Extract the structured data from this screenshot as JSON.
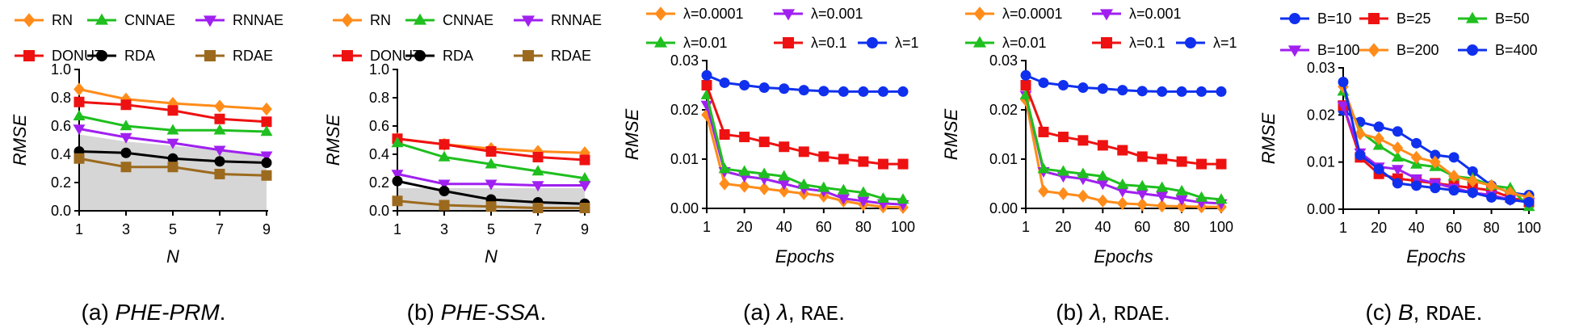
{
  "colors": {
    "RN": "#ff8c1a",
    "CNNAE": "#1fbf1f",
    "RNNAE": "#a020f0",
    "DONUT": "#ee1111",
    "RDA": "#000000",
    "RDAE": "#9c6a1e",
    "l0001": "#ff8c1a",
    "l001": "#a020f0",
    "l01": "#1fbf1f",
    "l1": "#ee1111",
    "lam1": "#1030ee",
    "B10": "#1030ee",
    "B25": "#ee1111",
    "B50": "#1fbf1f",
    "B100": "#a020f0",
    "B200": "#ff8c1a",
    "B400": "#1030ee",
    "shade": "#d6d6d6"
  },
  "captions": [
    {
      "label": "(a)",
      "italic": "PHE-PRM",
      "rest": "."
    },
    {
      "label": "(b)",
      "italic": "PHE-SSA",
      "rest": "."
    },
    {
      "label": "(a)",
      "italic": "λ",
      "rest": ", ",
      "mono": "RAE",
      "end": "."
    },
    {
      "label": "(b)",
      "italic": "λ",
      "rest": ", ",
      "mono": "RDAE",
      "end": "."
    },
    {
      "label": "(c)",
      "italic": "B",
      "rest": ", ",
      "mono": "RDAE",
      "end": "."
    }
  ],
  "chart_data": [
    {
      "type": "line",
      "xlabel": "N",
      "ylabel": "RMSE",
      "x": [
        1,
        3,
        5,
        7,
        9
      ],
      "xticks": [
        "1",
        "3",
        "5",
        "7",
        "9"
      ],
      "ylim": [
        0,
        1.0
      ],
      "yticks": [
        "0.0",
        "0.2",
        "0.4",
        "0.6",
        "0.8",
        "1.0"
      ],
      "legend_rows": [
        [
          "RN",
          "CNNAE",
          "RNNAE"
        ],
        [
          "DONUT",
          "RDA",
          "RDAE"
        ]
      ],
      "shaded_region": {
        "x": [
          1,
          3,
          5,
          7,
          9
        ],
        "upper": [
          0.54,
          0.49,
          0.46,
          0.43,
          0.4
        ]
      },
      "series": [
        {
          "name": "RN",
          "values": [
            0.86,
            0.79,
            0.76,
            0.74,
            0.72
          ]
        },
        {
          "name": "DONUT",
          "values": [
            0.77,
            0.75,
            0.71,
            0.65,
            0.63
          ]
        },
        {
          "name": "CNNAE",
          "values": [
            0.67,
            0.6,
            0.57,
            0.57,
            0.56
          ]
        },
        {
          "name": "RNNAE",
          "values": [
            0.58,
            0.52,
            0.48,
            0.43,
            0.39
          ]
        },
        {
          "name": "RDA",
          "values": [
            0.42,
            0.41,
            0.37,
            0.35,
            0.34
          ]
        },
        {
          "name": "RDAE",
          "values": [
            0.37,
            0.31,
            0.31,
            0.26,
            0.25
          ]
        }
      ]
    },
    {
      "type": "line",
      "xlabel": "N",
      "ylabel": "RMSE",
      "x": [
        1,
        3,
        5,
        7,
        9
      ],
      "xticks": [
        "1",
        "3",
        "5",
        "7",
        "9"
      ],
      "ylim": [
        0,
        1.0
      ],
      "yticks": [
        "0.0",
        "0.2",
        "0.4",
        "0.6",
        "0.8",
        "1.0"
      ],
      "legend_rows": [
        [
          "RN",
          "CNNAE",
          "RNNAE"
        ],
        [
          "DONUT",
          "RDA",
          "RDAE"
        ]
      ],
      "shaded_region": {
        "x": [
          1,
          3,
          5,
          7,
          9
        ],
        "upper": [
          0.16,
          0.16,
          0.16,
          0.16,
          0.16
        ]
      },
      "series": [
        {
          "name": "RN",
          "values": [
            0.51,
            0.47,
            0.44,
            0.42,
            0.41
          ]
        },
        {
          "name": "DONUT",
          "values": [
            0.51,
            0.47,
            0.42,
            0.38,
            0.36
          ]
        },
        {
          "name": "CNNAE",
          "values": [
            0.48,
            0.38,
            0.33,
            0.28,
            0.23
          ]
        },
        {
          "name": "RNNAE",
          "values": [
            0.26,
            0.19,
            0.19,
            0.18,
            0.18
          ]
        },
        {
          "name": "RDA",
          "values": [
            0.21,
            0.14,
            0.08,
            0.06,
            0.05
          ]
        },
        {
          "name": "RDAE",
          "values": [
            0.07,
            0.04,
            0.03,
            0.02,
            0.02
          ]
        }
      ]
    },
    {
      "type": "line",
      "xlabel": "Epochs",
      "ylabel": "RMSE",
      "x": [
        1,
        10,
        20,
        30,
        40,
        50,
        60,
        70,
        80,
        90,
        100
      ],
      "xticks": [
        "1",
        "20",
        "40",
        "60",
        "80",
        "100"
      ],
      "xtick_values": [
        1,
        20,
        40,
        60,
        80,
        100
      ],
      "ylim": [
        0,
        0.03
      ],
      "yticks": [
        "0.00",
        "0.01",
        "0.02",
        "0.03"
      ],
      "legend_rows": [
        [
          "λ=0.0001",
          "λ=0.001"
        ],
        [
          "λ=0.01",
          "λ=0.1",
          "λ=1"
        ]
      ],
      "series": [
        {
          "name": "λ=0.0001",
          "key": "l0001",
          "values": [
            0.019,
            0.005,
            0.0045,
            0.004,
            0.0035,
            0.003,
            0.0025,
            0.0015,
            0.0008,
            0.0003,
            0.0002
          ]
        },
        {
          "name": "λ=0.001",
          "key": "l001",
          "values": [
            0.021,
            0.0075,
            0.0065,
            0.006,
            0.005,
            0.004,
            0.0035,
            0.002,
            0.0015,
            0.001,
            0.0008
          ]
        },
        {
          "name": "λ=0.01",
          "key": "l01",
          "values": [
            0.023,
            0.008,
            0.0075,
            0.007,
            0.0065,
            0.0048,
            0.0042,
            0.0037,
            0.0032,
            0.002,
            0.0018
          ]
        },
        {
          "name": "λ=0.1",
          "key": "l1",
          "values": [
            0.025,
            0.015,
            0.0145,
            0.0135,
            0.0125,
            0.0115,
            0.0105,
            0.01,
            0.0095,
            0.009,
            0.009
          ]
        },
        {
          "name": "λ=1",
          "key": "lam1",
          "values": [
            0.027,
            0.0255,
            0.025,
            0.0245,
            0.0243,
            0.024,
            0.0238,
            0.0237,
            0.0237,
            0.0237,
            0.0237
          ]
        }
      ]
    },
    {
      "type": "line",
      "xlabel": "Epochs",
      "ylabel": "RMSE",
      "x": [
        1,
        10,
        20,
        30,
        40,
        50,
        60,
        70,
        80,
        90,
        100
      ],
      "xticks": [
        "1",
        "20",
        "40",
        "60",
        "80",
        "100"
      ],
      "xtick_values": [
        1,
        20,
        40,
        60,
        80,
        100
      ],
      "ylim": [
        0,
        0.03
      ],
      "yticks": [
        "0.00",
        "0.01",
        "0.02",
        "0.03"
      ],
      "legend_rows": [
        [
          "λ=0.0001",
          "λ=0.001"
        ],
        [
          "λ=0.01",
          "λ=0.1",
          "λ=1"
        ]
      ],
      "series": [
        {
          "name": "λ=0.0001",
          "key": "l0001",
          "values": [
            0.022,
            0.0035,
            0.003,
            0.0025,
            0.0015,
            0.001,
            0.0008,
            0.0005,
            0.0004,
            0.0003,
            0.0003
          ]
        },
        {
          "name": "λ=0.001",
          "key": "l001",
          "values": [
            0.023,
            0.0075,
            0.0065,
            0.006,
            0.005,
            0.0035,
            0.003,
            0.0025,
            0.0018,
            0.0012,
            0.001
          ]
        },
        {
          "name": "λ=0.01",
          "key": "l01",
          "values": [
            0.023,
            0.008,
            0.0075,
            0.007,
            0.0065,
            0.0048,
            0.0045,
            0.0042,
            0.0035,
            0.0022,
            0.0018
          ]
        },
        {
          "name": "λ=0.1",
          "key": "l1",
          "values": [
            0.025,
            0.0155,
            0.0145,
            0.0138,
            0.0128,
            0.0118,
            0.0105,
            0.01,
            0.0095,
            0.009,
            0.009
          ]
        },
        {
          "name": "λ=1",
          "key": "lam1",
          "values": [
            0.027,
            0.0255,
            0.025,
            0.0245,
            0.0243,
            0.024,
            0.0238,
            0.0237,
            0.0237,
            0.0237,
            0.0237
          ]
        }
      ]
    },
    {
      "type": "line",
      "xlabel": "Epochs",
      "ylabel": "RMSE",
      "x": [
        1,
        10,
        20,
        30,
        40,
        50,
        60,
        70,
        80,
        90,
        100
      ],
      "xticks": [
        "1",
        "20",
        "40",
        "60",
        "80",
        "100"
      ],
      "xtick_values": [
        1,
        20,
        40,
        60,
        80,
        100
      ],
      "ylim": [
        0,
        0.03
      ],
      "yticks": [
        "0.00",
        "0.01",
        "0.02",
        "0.03"
      ],
      "legend_rows": [
        [
          "B=10",
          "B=25",
          "B=50"
        ],
        [
          "B=100",
          "B=200",
          "B=400"
        ]
      ],
      "series": [
        {
          "name": "B=10",
          "key": "B10",
          "values": [
            0.021,
            0.0185,
            0.0175,
            0.0165,
            0.014,
            0.0115,
            0.011,
            0.008,
            0.005,
            0.0035,
            0.003
          ]
        },
        {
          "name": "B=25",
          "key": "B25",
          "values": [
            0.022,
            0.011,
            0.0075,
            0.0065,
            0.006,
            0.0055,
            0.005,
            0.0045,
            0.004,
            0.0025,
            0.0015
          ]
        },
        {
          "name": "B=50",
          "key": "B50",
          "values": [
            0.025,
            0.0165,
            0.0135,
            0.011,
            0.0095,
            0.009,
            0.007,
            0.0065,
            0.005,
            0.0045,
            0.0005
          ]
        },
        {
          "name": "B=100",
          "key": "B100",
          "values": [
            0.022,
            0.012,
            0.009,
            0.0085,
            0.0065,
            0.0055,
            0.0045,
            0.0035,
            0.003,
            0.002,
            0.0015
          ]
        },
        {
          "name": "B=200",
          "key": "B200",
          "values": [
            0.026,
            0.016,
            0.015,
            0.013,
            0.011,
            0.01,
            0.007,
            0.006,
            0.005,
            0.0035,
            0.0025
          ]
        },
        {
          "name": "B=400",
          "key": "B400",
          "values": [
            0.027,
            0.0115,
            0.0085,
            0.0055,
            0.005,
            0.0045,
            0.004,
            0.0035,
            0.0025,
            0.002,
            0.0015
          ]
        }
      ]
    }
  ]
}
